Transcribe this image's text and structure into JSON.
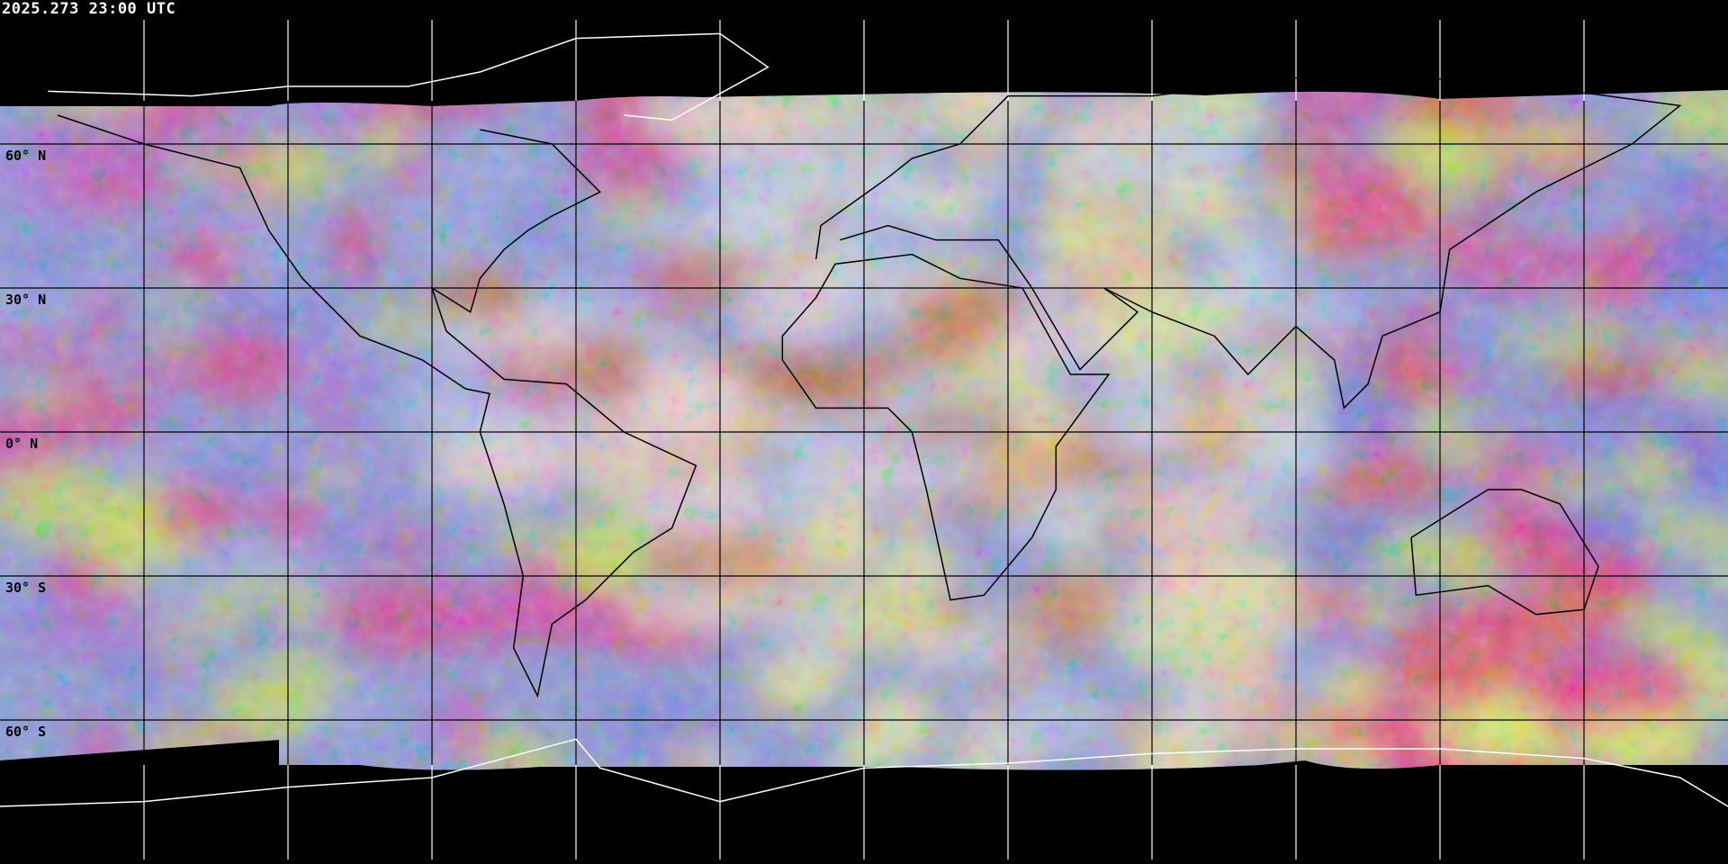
{
  "header": {
    "timestamp": "2025.273 23:00 UTC"
  },
  "map": {
    "projection": "equirectangular",
    "grid_spacing_degrees": 30,
    "lat_labels": [
      "60° N",
      "30° N",
      "0° N",
      "30° S",
      "60° S"
    ],
    "lat_values": [
      60,
      30,
      0,
      -30,
      -60
    ],
    "lon_lines": [
      -150,
      -120,
      -90,
      -60,
      -30,
      0,
      30,
      60,
      90,
      120,
      150
    ],
    "colors": {
      "background": "#000000",
      "coastline_outside": "#ffffff",
      "coastline_inside": "#000000",
      "grid_outside": "#ffffff",
      "grid_inside": "#000000"
    }
  }
}
